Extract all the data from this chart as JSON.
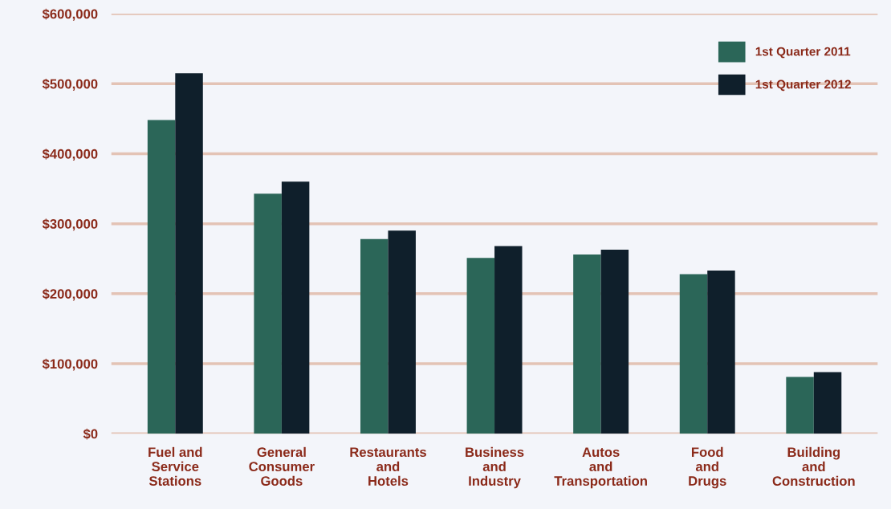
{
  "chart_data": {
    "type": "bar",
    "categories": [
      "Fuel and\nService\nStations",
      "General\nConsumer\nGoods",
      "Restaurants\nand\nHotels",
      "Business\nand\nIndustry",
      "Autos\nand\nTransportation",
      "Food\nand\nDrugs",
      "Building\nand\nConstruction"
    ],
    "series": [
      {
        "name": "1st Quarter 2011",
        "color": "#2b6658",
        "values": [
          448000,
          343000,
          278000,
          251000,
          256000,
          228000,
          81000
        ]
      },
      {
        "name": "1st Quarter 2012",
        "color": "#0f1f2b",
        "values": [
          515000,
          360000,
          290000,
          268000,
          263000,
          233000,
          88000
        ]
      }
    ],
    "ylim": [
      0,
      600000
    ],
    "yticks": [
      {
        "value": 0,
        "label": "$0"
      },
      {
        "value": 100000,
        "label": "$100,000"
      },
      {
        "value": 200000,
        "label": "$200,000"
      },
      {
        "value": 300000,
        "label": "$300,000"
      },
      {
        "value": 400000,
        "label": "$400,000"
      },
      {
        "value": 500000,
        "label": "$500,000"
      },
      {
        "value": 600000,
        "label": "$600,000"
      }
    ],
    "grid": "y",
    "legend": "top right"
  }
}
